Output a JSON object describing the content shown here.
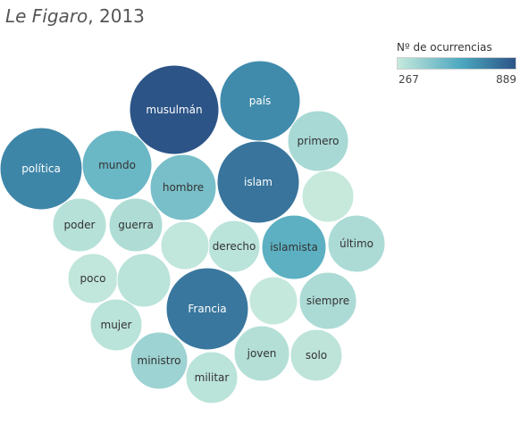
{
  "header": {
    "publication": "Le Figaro",
    "year_suffix": ", 2013"
  },
  "legend": {
    "title": "Nº de ocurrencias",
    "min_label": "267",
    "max_label": "889"
  },
  "colors": {
    "low": "#c6e9dc",
    "mid": "#4aa6be",
    "high": "#2c5487"
  },
  "chart_data": {
    "type": "bubble",
    "title": "Le Figaro, 2013",
    "value_range": [
      267,
      889
    ],
    "color_legend": "Nº de ocurrencias",
    "items": [
      {
        "label": "musulmán",
        "value": 889
      },
      {
        "label": "islam",
        "value": 780
      },
      {
        "label": "Francia",
        "value": 770
      },
      {
        "label": "política",
        "value": 720
      },
      {
        "label": "país",
        "value": 700
      },
      {
        "label": "islamista",
        "value": 560
      },
      {
        "label": "mundo",
        "value": 520
      },
      {
        "label": "hombre",
        "value": 480
      },
      {
        "label": "ministro",
        "value": 380
      },
      {
        "label": "primero",
        "value": 350
      },
      {
        "label": "último",
        "value": 340
      },
      {
        "label": "siempre",
        "value": 340
      },
      {
        "label": "guerra",
        "value": 330
      },
      {
        "label": "joven",
        "value": 320
      },
      {
        "label": "poder",
        "value": 310
      },
      {
        "label": "mujer",
        "value": 300
      },
      {
        "label": "derecho",
        "value": 300
      },
      {
        "label": "militar",
        "value": 300
      },
      {
        "label": "solo",
        "value": 290
      },
      {
        "label": "poco",
        "value": 280
      },
      {
        "label": "",
        "value": 300
      },
      {
        "label": "",
        "value": 280
      },
      {
        "label": "",
        "value": 270
      },
      {
        "label": "",
        "value": 267
      }
    ]
  }
}
